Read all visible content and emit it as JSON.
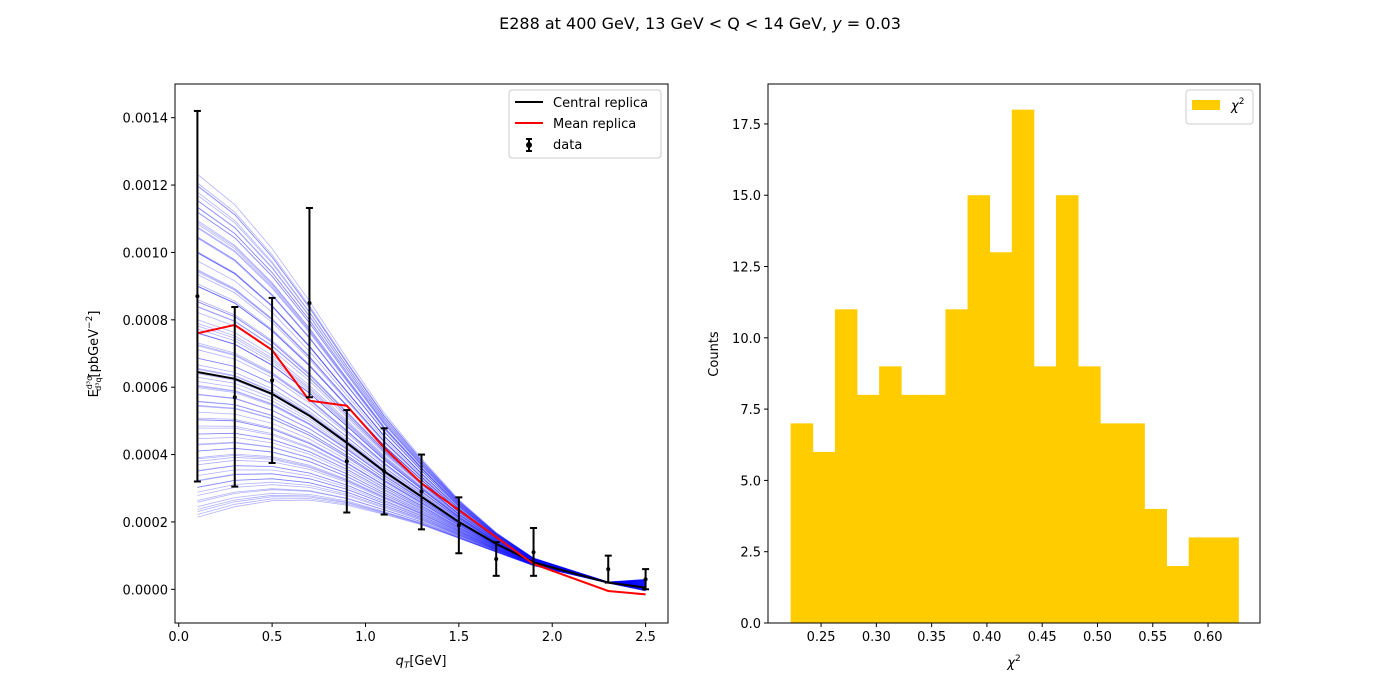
{
  "figure": {
    "title": "E288  at 400 GeV, 13 GeV < Q < 14 GeV, y = 0.03",
    "title_prefix": "E288  at 400 GeV, 13 GeV < Q < 14 GeV, ",
    "title_var": "y",
    "title_suffix": " = 0.03"
  },
  "chart_data": [
    {
      "type": "line",
      "xlabel": "q_T[GeV]",
      "xlabel_var": "q",
      "xlabel_sub": "T",
      "xlabel_unit": "[GeV]",
      "ylabel": "E d³σ/d³q [pbGeV⁻²]",
      "ylabel_main": "E",
      "ylabel_num": "d³σ",
      "ylabel_den": "d³q",
      "ylabel_unit": "[pbGeV",
      "ylabel_exp": "−2",
      "ylabel_close": "]",
      "xlim": [
        -0.02,
        2.62
      ],
      "ylim": [
        -0.0001,
        0.0015
      ],
      "xticks": [
        0.0,
        0.5,
        1.0,
        1.5,
        2.0,
        2.5
      ],
      "xtick_labels": [
        "0.0",
        "0.5",
        "1.0",
        "1.5",
        "2.0",
        "2.5"
      ],
      "yticks": [
        0.0,
        0.0002,
        0.0004,
        0.0006,
        0.0008,
        0.001,
        0.0012,
        0.0014
      ],
      "ytick_labels": [
        "0.0000",
        "0.0002",
        "0.0004",
        "0.0006",
        "0.0008",
        "0.0010",
        "0.0012",
        "0.0014"
      ],
      "legend_position": "top-right",
      "colors": {
        "central": "#000000",
        "mean": "#ff0000",
        "replicas": "#0000ff",
        "data": "#000000"
      },
      "x": [
        0.1,
        0.3,
        0.5,
        0.7,
        0.9,
        1.1,
        1.3,
        1.5,
        1.7,
        1.9,
        2.3,
        2.5
      ],
      "series": [
        {
          "name": "Central replica",
          "values": [
            0.000645,
            0.000625,
            0.00058,
            0.000515,
            0.000435,
            0.00035,
            0.000275,
            0.0002,
            0.000135,
            8e-05,
            2e-05,
            5e-06
          ]
        },
        {
          "name": "Mean replica",
          "values": [
            0.00076,
            0.000785,
            0.00071,
            0.00056,
            0.000545,
            0.00042,
            0.000315,
            0.000235,
            0.000155,
            7.5e-05,
            -5e-06,
            -1.5e-05
          ]
        }
      ],
      "data": {
        "name": "data",
        "values": [
          0.00087,
          0.00057,
          0.00062,
          0.00085,
          0.00038,
          0.00035,
          0.00029,
          0.00019,
          9e-05,
          0.00011,
          6e-05,
          3e-05
        ],
        "err_low": [
          0.00032,
          0.000305,
          0.000375,
          0.00057,
          0.000228,
          0.000222,
          0.000178,
          0.000107,
          4e-05,
          4e-05,
          2e-05,
          0.0
        ],
        "err_high": [
          0.00142,
          0.000838,
          0.000865,
          0.001132,
          0.000532,
          0.000478,
          0.0004,
          0.000273,
          0.00014,
          0.000182,
          0.0001,
          6e-05
        ]
      },
      "replica_band": {
        "count": 100,
        "q0_min": 0.00021,
        "q0_max": 0.00123,
        "tail_min": -5e-06,
        "tail_max": 3e-05
      }
    },
    {
      "type": "bar",
      "xlabel": "χ²",
      "xlabel_var": "χ",
      "xlabel_exp": "2",
      "ylabel": "Counts",
      "xlim": [
        0.202,
        0.647
      ],
      "ylim": [
        0,
        18.9
      ],
      "xticks": [
        0.25,
        0.3,
        0.35,
        0.4,
        0.45,
        0.5,
        0.55,
        0.6
      ],
      "xtick_labels": [
        "0.25",
        "0.30",
        "0.35",
        "0.40",
        "0.45",
        "0.50",
        "0.55",
        "0.60"
      ],
      "yticks": [
        0,
        2.5,
        5,
        7.5,
        10,
        12.5,
        15,
        17.5
      ],
      "ytick_labels": [
        "0.0",
        "2.5",
        "5.0",
        "7.5",
        "10.0",
        "12.5",
        "15.0",
        "17.5"
      ],
      "legend_position": "top-right",
      "colors": {
        "bars": "#ffcc00"
      },
      "legend": [
        {
          "name": "χ²",
          "var": "χ",
          "exp": "2"
        }
      ],
      "bin_edges": [
        0.2225,
        0.2425,
        0.2625,
        0.2825,
        0.3025,
        0.3225,
        0.3425,
        0.3625,
        0.3825,
        0.4025,
        0.4225,
        0.4425,
        0.4625,
        0.4825,
        0.5025,
        0.5225,
        0.5425,
        0.5625,
        0.5825,
        0.6025,
        0.6275
      ],
      "counts": [
        7,
        6,
        11,
        8,
        9,
        8,
        8,
        11,
        15,
        13,
        18,
        9,
        15,
        9,
        7,
        7,
        4,
        2,
        3,
        3
      ]
    }
  ]
}
